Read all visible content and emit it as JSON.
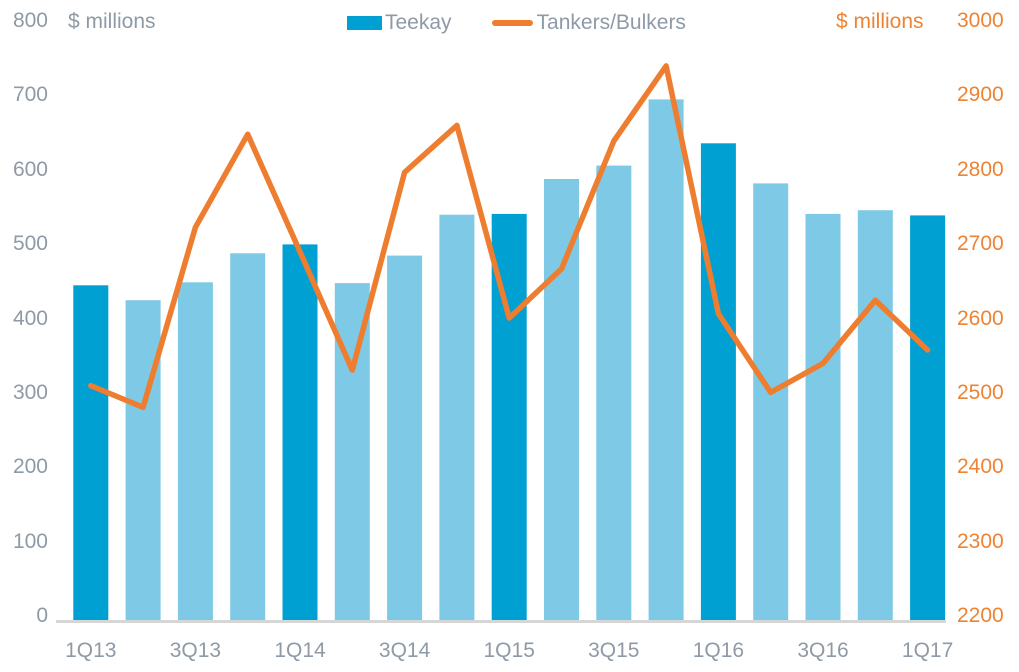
{
  "colors": {
    "bar_light": "#7ec9e5",
    "bar_dark": "#00a0d2",
    "line_orange": "#ee7d2f",
    "axis_text_gray": "#8e9aa6",
    "axis_text_orange": "#ee8333",
    "baseline_gray": "#d6d6d6"
  },
  "chart_data": {
    "type": "combo-bar-line",
    "categories": [
      "1Q13",
      "2Q13",
      "3Q13",
      "4Q13",
      "1Q14",
      "2Q14",
      "3Q14",
      "4Q14",
      "1Q15",
      "2Q15",
      "3Q15",
      "4Q15",
      "1Q16",
      "2Q16",
      "3Q16",
      "4Q16",
      "1Q17"
    ],
    "x_tick_labels": [
      "1Q13",
      "3Q13",
      "1Q14",
      "3Q14",
      "1Q15",
      "3Q15",
      "1Q16",
      "3Q16",
      "1Q17"
    ],
    "series": [
      {
        "name": "Teekay",
        "type": "bar",
        "axis": "left",
        "values": [
          450,
          430,
          454,
          493,
          505,
          453,
          490,
          545,
          546,
          593,
          611,
          700,
          641,
          587,
          546,
          551,
          544
        ],
        "color_regular": "#7ec9e5",
        "color_highlight": "#00a0d2",
        "highlight_indices": [
          0,
          4,
          8,
          12,
          16
        ]
      },
      {
        "name": "Tankers/Bulkers",
        "type": "line",
        "axis": "right",
        "values": [
          2515,
          2486,
          2728,
          2853,
          2695,
          2536,
          2802,
          2865,
          2606,
          2672,
          2844,
          2945,
          2612,
          2506,
          2545,
          2630,
          2563
        ],
        "color": "#ee7d2f"
      }
    ],
    "left_axis": {
      "title": "$ millions",
      "min": 0,
      "max": 800,
      "step": 100,
      "ticks": [
        800,
        700,
        600,
        500,
        400,
        300,
        200,
        100,
        0
      ]
    },
    "right_axis": {
      "title": "$ millions",
      "min": 2200,
      "max": 3000,
      "step": 100,
      "ticks": [
        3000,
        2900,
        2800,
        2700,
        2600,
        2500,
        2400,
        2300,
        2200
      ]
    },
    "grid": false,
    "legend_position": "top-center"
  }
}
